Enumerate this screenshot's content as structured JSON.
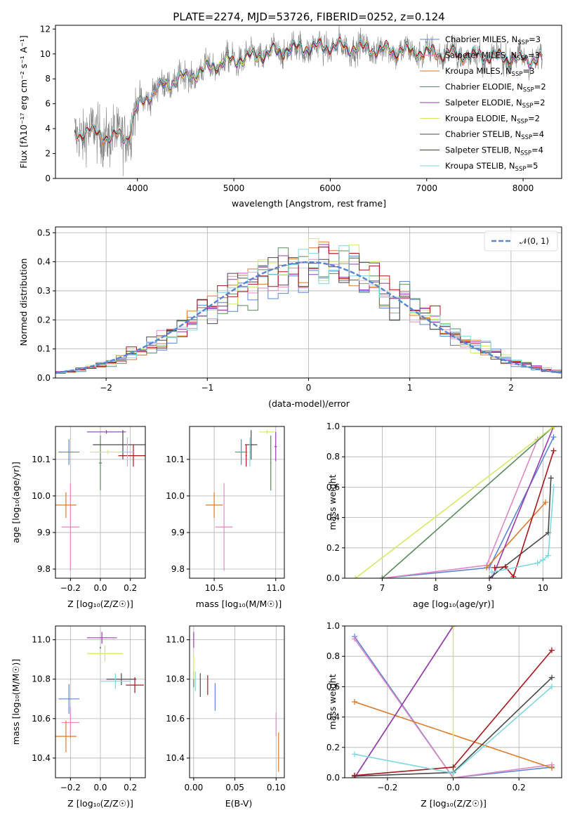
{
  "figure": {
    "title": "PLATE=2274, MJD=53726, FIBERID=0252, z=0.124"
  },
  "models": [
    {
      "name": "Chabrier MILES",
      "nssp": "3",
      "color": "#5b86d6"
    },
    {
      "name": "Salpeter MILES",
      "nssp": "3",
      "color": "#e089c2"
    },
    {
      "name": "Kroupa MILES",
      "nssp": "3",
      "color": "#de7a2a"
    },
    {
      "name": "Chabrier ELODIE",
      "nssp": "2",
      "color": "#5a8a5e"
    },
    {
      "name": "Salpeter ELODIE",
      "nssp": "2",
      "color": "#9b3bb0"
    },
    {
      "name": "Kroupa ELODIE",
      "nssp": "2",
      "color": "#d4e862"
    },
    {
      "name": "Chabrier STELIB",
      "nssp": "4",
      "color": "#4a4a4a"
    },
    {
      "name": "Salpeter STELIB",
      "nssp": "4",
      "color": "#a8161e"
    },
    {
      "name": "Kroupa STELIB",
      "nssp": "5",
      "color": "#7fd7df"
    }
  ],
  "chart_data": [
    {
      "id": "spectrum",
      "type": "line",
      "xlabel": "wavelength [Angstrom, rest frame]",
      "ylabel": "Flux [fλ10⁻¹⁷ erg cm⁻² s⁻¹ A⁻¹]",
      "xlim": [
        3150,
        8400
      ],
      "ylim": [
        0,
        12.3
      ],
      "xticks": [
        4000,
        5000,
        6000,
        7000,
        8000
      ],
      "yticks": [
        0,
        2,
        4,
        6,
        8,
        10,
        12
      ],
      "data_color": "#808080",
      "continuum_wavelength": [
        3350,
        3500,
        3700,
        3900,
        4000,
        4200,
        4400,
        4600,
        4800,
        5000,
        5200,
        5400,
        5600,
        5800,
        6000,
        6200,
        6400,
        6600,
        6800,
        7000,
        7200,
        7400,
        7600,
        7800,
        8000,
        8200
      ],
      "continuum_flux": [
        3.5,
        3.8,
        3.3,
        3.4,
        5.8,
        7.2,
        7.9,
        8.4,
        9.1,
        9.5,
        9.8,
        10.1,
        10.4,
        10.5,
        10.6,
        10.5,
        10.4,
        10.3,
        10.2,
        10.1,
        10.0,
        9.9,
        9.8,
        9.7,
        9.6,
        9.5
      ],
      "legend": "top-right",
      "grid": false
    },
    {
      "id": "residuals",
      "type": "histogram",
      "xlabel": "(data-model)/error",
      "ylabel": "Normed distribution",
      "xlim": [
        -2.5,
        2.5
      ],
      "ylim": [
        0,
        0.52
      ],
      "xticks": [
        -2,
        -1,
        0,
        1,
        2
      ],
      "yticks": [
        0.0,
        0.1,
        0.2,
        0.3,
        0.4,
        0.5
      ],
      "reference_label": "𝒩(0, 1)",
      "reference_color": "#5b86d6",
      "bin_width": 0.1,
      "legend": "top-right",
      "grid": true
    },
    {
      "id": "z_vs_age",
      "type": "errorbar",
      "xlabel": "Z [log₁₀(Z/Z☉)]",
      "ylabel": "age  [log₁₀(age/yr)]",
      "xlim": [
        -0.3,
        0.3
      ],
      "ylim": [
        9.775,
        10.19
      ],
      "xticks": [
        -0.2,
        0.0,
        0.2
      ],
      "yticks": [
        9.8,
        9.9,
        10.0,
        10.1
      ],
      "points": [
        {
          "x": -0.21,
          "xerr": 0.07,
          "y": 10.12,
          "yerr": 0.035
        },
        {
          "x": -0.2,
          "xerr": 0.06,
          "y": 9.915,
          "yerr": 0.12
        },
        {
          "x": -0.23,
          "xerr": 0.07,
          "y": 9.975,
          "yerr": 0.035
        },
        {
          "x": 0.0,
          "xerr": 0.01,
          "y": 10.09,
          "yerr": 0.075
        },
        {
          "x": 0.04,
          "xerr": 0.13,
          "y": 10.175,
          "yerr": 0.005
        },
        {
          "x": 0.05,
          "xerr": 0.12,
          "y": 10.12,
          "yerr": 0.005
        },
        {
          "x": 0.15,
          "xerr": 0.2,
          "y": 10.14,
          "yerr": 0.04
        },
        {
          "x": 0.22,
          "xerr": 0.1,
          "y": 10.11,
          "yerr": 0.03
        },
        {
          "x": 0.18,
          "xerr": 0.04,
          "y": 10.12,
          "yerr": 0.04
        }
      ],
      "grid": true
    },
    {
      "id": "mass_vs_age",
      "type": "errorbar",
      "xlabel": "mass [log₁₀(M/M☉)]",
      "ylabel": "",
      "xlim": [
        10.3,
        11.07
      ],
      "ylim": [
        9.775,
        10.19
      ],
      "xticks": [
        10.5,
        11.0
      ],
      "yticks": [
        9.8,
        9.9,
        10.0,
        10.1
      ],
      "points": [
        {
          "x": 10.72,
          "xerr": 0.05,
          "y": 10.12,
          "yerr": 0.035
        },
        {
          "x": 10.58,
          "xerr": 0.07,
          "y": 9.915,
          "yerr": 0.12
        },
        {
          "x": 10.5,
          "xerr": 0.07,
          "y": 9.975,
          "yerr": 0.035
        },
        {
          "x": 10.96,
          "xerr": 0.005,
          "y": 10.09,
          "yerr": 0.075
        },
        {
          "x": 11.0,
          "xerr": 0.01,
          "y": 10.135,
          "yerr": 0.04
        },
        {
          "x": 10.93,
          "xerr": 0.06,
          "y": 10.175,
          "yerr": 0.005
        },
        {
          "x": 10.8,
          "xerr": 0.05,
          "y": 10.14,
          "yerr": 0.04
        },
        {
          "x": 10.76,
          "xerr": 0.005,
          "y": 10.11,
          "yerr": 0.03
        },
        {
          "x": 10.79,
          "xerr": 0.005,
          "y": 10.12,
          "yerr": 0.04
        }
      ],
      "grid": true
    },
    {
      "id": "age_vs_massweight",
      "type": "line",
      "xlabel": "age  [log₁₀(age/yr)]",
      "ylabel": "mass weight",
      "xlim": [
        6.3,
        10.35
      ],
      "ylim": [
        0,
        1
      ],
      "xticks": [
        7,
        8,
        9,
        10
      ],
      "yticks": [
        0.0,
        0.2,
        0.4,
        0.6,
        0.8,
        1.0
      ],
      "series": [
        {
          "x": [
            7.0,
            9.0,
            10.2
          ],
          "y": [
            0.0,
            0.07,
            0.93
          ]
        },
        {
          "x": [
            7.0,
            8.95,
            9.9
          ],
          "y": [
            0.0,
            0.085,
            0.915
          ]
        },
        {
          "x": [
            8.95,
            10.05
          ],
          "y": [
            0.07,
            0.5
          ]
        },
        {
          "x": [
            7.0,
            10.2
          ],
          "y": [
            0.0,
            1.0
          ]
        },
        {
          "x": [
            9.05,
            10.2
          ],
          "y": [
            0.0,
            1.0
          ]
        },
        {
          "x": [
            6.5,
            10.2
          ],
          "y": [
            0.0,
            1.0
          ]
        },
        {
          "x": [
            9.0,
            10.1,
            10.15
          ],
          "y": [
            0.0,
            0.3,
            0.66
          ]
        },
        {
          "x": [
            9.1,
            9.3,
            9.45,
            10.2
          ],
          "y": [
            0.07,
            0.075,
            0.01,
            0.84
          ]
        },
        {
          "x": [
            9.05,
            9.9,
            10.0,
            10.1,
            10.2
          ],
          "y": [
            0.04,
            0.1,
            0.12,
            0.15,
            0.6
          ]
        }
      ],
      "grid": true
    },
    {
      "id": "z_vs_mass",
      "type": "errorbar",
      "xlabel": "Z [log₁₀(Z/Z☉)]",
      "ylabel": "mass [log₁₀(M/M☉)]",
      "xlim": [
        -0.3,
        0.3
      ],
      "ylim": [
        10.3,
        11.07
      ],
      "xticks": [
        -0.2,
        0.0,
        0.2
      ],
      "yticks": [
        10.4,
        10.6,
        10.8,
        11.0
      ],
      "points": [
        {
          "x": -0.21,
          "xerr": 0.07,
          "y": 10.7,
          "yerr": 0.075
        },
        {
          "x": -0.2,
          "xerr": 0.06,
          "y": 10.58,
          "yerr": 0.08
        },
        {
          "x": -0.23,
          "xerr": 0.07,
          "y": 10.51,
          "yerr": 0.08
        },
        {
          "x": 0.0,
          "xerr": 0.005,
          "y": 10.96,
          "yerr": 0.005
        },
        {
          "x": 0.01,
          "xerr": 0.1,
          "y": 11.01,
          "yerr": 0.03
        },
        {
          "x": 0.03,
          "xerr": 0.12,
          "y": 10.93,
          "yerr": 0.04
        },
        {
          "x": 0.14,
          "xerr": 0.1,
          "y": 10.8,
          "yerr": 0.03
        },
        {
          "x": 0.23,
          "xerr": 0.06,
          "y": 10.77,
          "yerr": 0.04
        },
        {
          "x": 0.1,
          "xerr": 0.1,
          "y": 10.79,
          "yerr": 0.04
        }
      ],
      "grid": true
    },
    {
      "id": "ebv_vs_mass",
      "type": "errorbar",
      "xlabel": "E(B-V)",
      "ylabel": "",
      "xlim": [
        -0.005,
        0.11
      ],
      "ylim": [
        10.3,
        11.07
      ],
      "xticks": [
        0.0,
        0.05,
        0.1
      ],
      "yticks": [
        10.4,
        10.6,
        10.8,
        11.0
      ],
      "points": [
        {
          "x": 0.026,
          "xerr": 0.0,
          "y": 10.71,
          "yerr": 0.07
        },
        {
          "x": 0.1,
          "xerr": 0.0,
          "y": 10.57,
          "yerr": 0.06
        },
        {
          "x": 0.103,
          "xerr": 0.0,
          "y": 10.43,
          "yerr": 0.1
        },
        {
          "x": 0.0,
          "xerr": 0.0,
          "y": 10.8,
          "yerr": 0.04
        },
        {
          "x": 0.0,
          "xerr": 0.0,
          "y": 11.0,
          "yerr": 0.04
        },
        {
          "x": 0.0,
          "xerr": 0.0,
          "y": 10.86,
          "yerr": 0.06
        },
        {
          "x": 0.008,
          "xerr": 0.0,
          "y": 10.77,
          "yerr": 0.06
        },
        {
          "x": 0.017,
          "xerr": 0.0,
          "y": 10.77,
          "yerr": 0.05
        },
        {
          "x": 0.002,
          "xerr": 0.0,
          "y": 10.79,
          "yerr": 0.05
        }
      ],
      "grid": true
    },
    {
      "id": "z_vs_massweight",
      "type": "line",
      "xlabel": "Z [log₁₀(Z/Z☉)]",
      "ylabel": "mass weight",
      "xlim": [
        -0.33,
        0.33
      ],
      "ylim": [
        0,
        1
      ],
      "xticks": [
        -0.2,
        0.0,
        0.2
      ],
      "yticks": [
        0.0,
        0.2,
        0.4,
        0.6,
        0.8,
        1.0
      ],
      "series": [
        {
          "x": [
            -0.3,
            0.0,
            0.3
          ],
          "y": [
            0.93,
            0.0,
            0.07
          ]
        },
        {
          "x": [
            -0.3,
            0.0,
            0.3
          ],
          "y": [
            0.915,
            0.0,
            0.085
          ]
        },
        {
          "x": [
            -0.3,
            0.3
          ],
          "y": [
            0.5,
            0.065
          ]
        },
        {
          "x": [
            -0.3,
            0.0
          ],
          "y": [
            0.0,
            1.0
          ]
        },
        {
          "x": [
            -0.3,
            0.0
          ],
          "y": [
            0.0,
            1.0
          ]
        },
        {
          "x": [
            0.0,
            0.0
          ],
          "y": [
            0.0,
            1.0
          ]
        },
        {
          "x": [
            -0.3,
            0.0,
            0.3
          ],
          "y": [
            0.01,
            0.035,
            0.66
          ]
        },
        {
          "x": [
            -0.3,
            0.0,
            0.3
          ],
          "y": [
            0.015,
            0.07,
            0.84
          ]
        },
        {
          "x": [
            -0.3,
            0.0,
            0.3
          ],
          "y": [
            0.155,
            0.03,
            0.6
          ]
        }
      ],
      "grid": true
    }
  ]
}
